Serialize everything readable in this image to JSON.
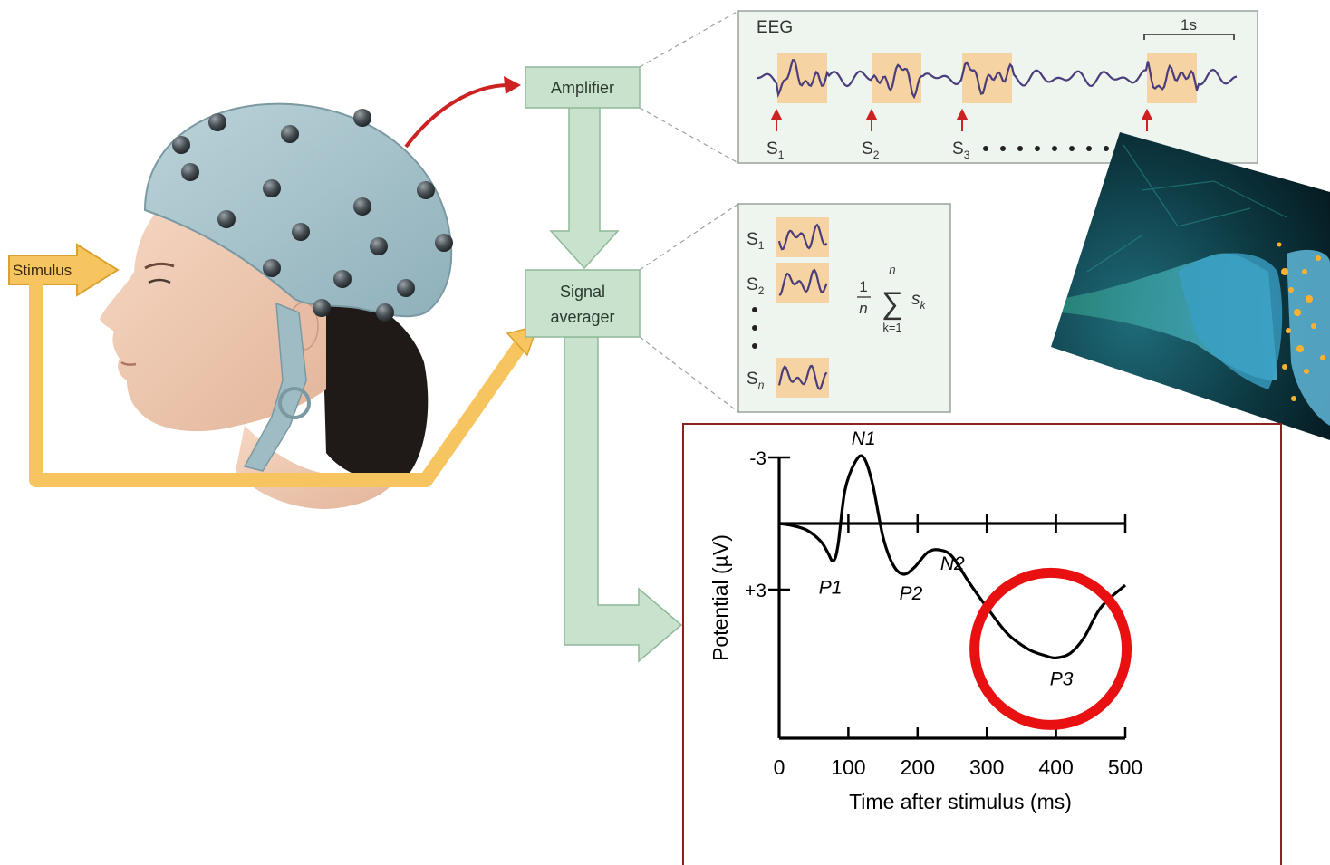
{
  "diagram": {
    "stimulus_label": "Stimulus",
    "amplifier_label": "Amplifier",
    "signal_averager_line1": "Signal",
    "signal_averager_line2": "averager",
    "eeg_panel": {
      "title": "EEG",
      "scale_label": "1s",
      "stimulus_markers": [
        {
          "letter": "S",
          "sub": "1"
        },
        {
          "letter": "S",
          "sub": "2"
        },
        {
          "letter": "S",
          "sub": "3"
        }
      ]
    },
    "averager_panel": {
      "rows": [
        {
          "letter": "S",
          "sub": "1"
        },
        {
          "letter": "S",
          "sub": "2"
        },
        {
          "letter": "S",
          "sub": "n"
        }
      ],
      "formula": {
        "numerator": "1",
        "denominator": "n",
        "sum_upper": "n",
        "sum_lower": "k=1",
        "term": "s",
        "term_sub": "k"
      }
    }
  },
  "chart_data": {
    "type": "line",
    "xlabel": "Time after stimulus (ms)",
    "ylabel": "Potential (µV)",
    "x_ticks": [
      "0",
      "100",
      "200",
      "300",
      "400",
      "500"
    ],
    "y_ticks": [
      "-3",
      "+3"
    ],
    "xlim": [
      0,
      500
    ],
    "ylim": [
      -3,
      6
    ],
    "y_inverted": true,
    "grid": false,
    "series": [
      {
        "x": [
          0,
          20,
          40,
          60,
          70,
          78,
          85,
          95,
          110,
          122,
          135,
          150,
          165,
          180,
          195,
          215,
          232,
          250,
          275,
          300,
          330,
          360,
          385,
          400,
          420,
          440,
          465,
          500
        ],
        "y": [
          0,
          0.1,
          0.3,
          0.8,
          1.3,
          1.7,
          1.0,
          -1.5,
          -2.8,
          -3.0,
          -1.8,
          0.6,
          1.9,
          2.3,
          2.0,
          1.3,
          1.2,
          1.5,
          2.7,
          3.8,
          5.0,
          5.7,
          6.0,
          6.1,
          5.9,
          5.2,
          3.8,
          2.8
        ]
      }
    ],
    "annotations": [
      {
        "label": "N1",
        "x": 122,
        "y": -3.0
      },
      {
        "label": "P1",
        "x": 78,
        "y": 1.7
      },
      {
        "label": "N2",
        "x": 232,
        "y": 1.2
      },
      {
        "label": "P2",
        "x": 180,
        "y": 2.3
      },
      {
        "label": "P3",
        "x": 400,
        "y": 6.1
      }
    ],
    "highlight": {
      "shape": "circle",
      "color": "#e81010",
      "around": "P3"
    }
  },
  "colors": {
    "box_fill": "#c9e2cd",
    "box_stroke": "#8fb99a",
    "stimulus_arrow": "#f7c560",
    "stimulus_arrow_stroke": "#d9a230",
    "amplifier_arrow": "#cc2222",
    "wave": "#4a3d7a",
    "epoch_highlight": "#f6d3a3",
    "panel_border": "#8d2020",
    "cap": "#a9c4cc"
  },
  "icons": [
    "human-head-icon",
    "eeg-electrode-cap-icon",
    "neuron-synapse-image"
  ]
}
